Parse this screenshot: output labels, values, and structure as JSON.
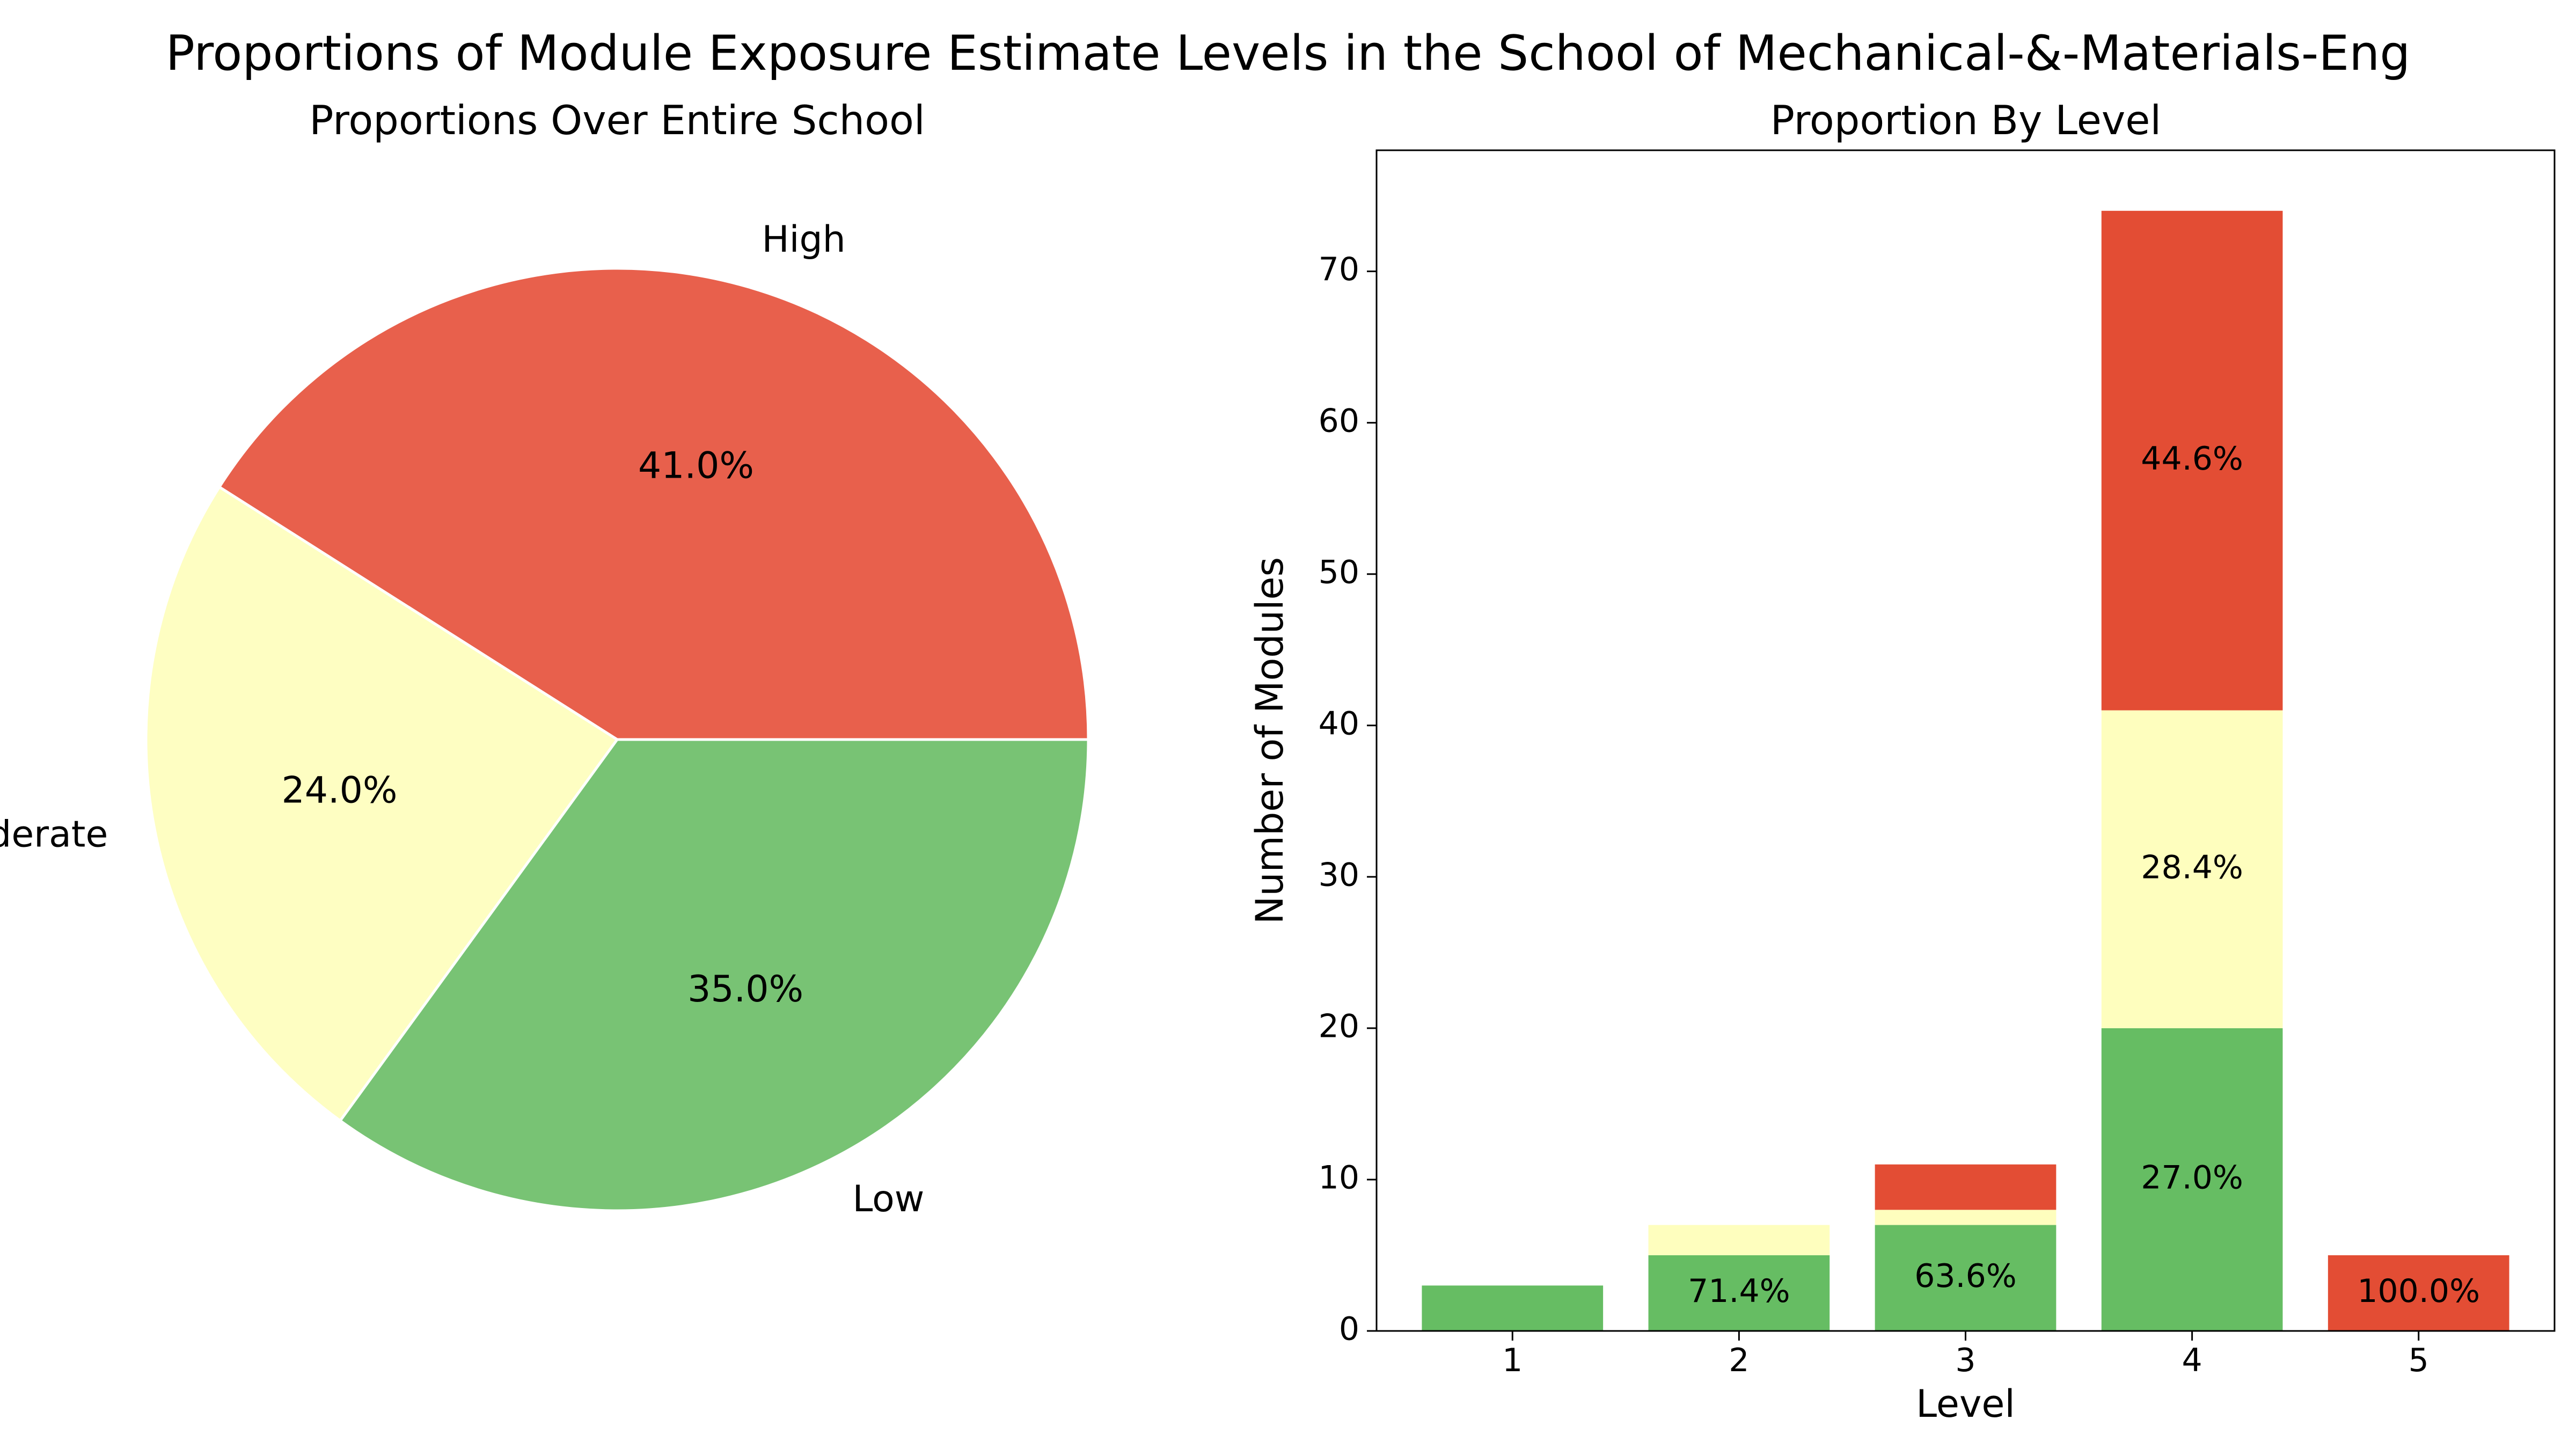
{
  "figure": {
    "title": "Proportions of Module Exposure Estimate Levels in the School of Mechanical-&-Materials-Eng"
  },
  "chart_data": [
    {
      "type": "pie",
      "title": "Proportions Over Entire School",
      "slices": [
        {
          "label": "High",
          "value": 41.0,
          "pct_label": "41.0%",
          "color": "#e8604c"
        },
        {
          "label": "Moderate",
          "value": 24.0,
          "pct_label": "24.0%",
          "color": "#fefec2"
        },
        {
          "label": "Low",
          "value": 35.0,
          "pct_label": "35.0%",
          "color": "#78c374"
        }
      ]
    },
    {
      "type": "bar",
      "stacked": true,
      "title": "Proportion By Level",
      "xlabel": "Level",
      "ylabel": "Number of Modules",
      "categories": [
        "1",
        "2",
        "3",
        "4",
        "5"
      ],
      "ylim": [
        0,
        78
      ],
      "yticks": [
        0,
        10,
        20,
        30,
        40,
        50,
        60,
        70
      ],
      "series": [
        {
          "key": "low",
          "color": "#66bd63",
          "values": [
            3,
            5,
            7,
            20,
            0
          ]
        },
        {
          "key": "moderate",
          "color": "#fefebe",
          "values": [
            0,
            2,
            1,
            21,
            0
          ]
        },
        {
          "key": "high",
          "color": "#e34d34",
          "values": [
            0,
            0,
            3,
            33,
            5
          ]
        }
      ],
      "annotations": [
        {
          "category": "2",
          "series": "low",
          "text": "71.4%"
        },
        {
          "category": "3",
          "series": "low",
          "text": "63.6%"
        },
        {
          "category": "4",
          "series": "low",
          "text": "27.0%"
        },
        {
          "category": "4",
          "series": "moderate",
          "text": "28.4%"
        },
        {
          "category": "4",
          "series": "high",
          "text": "44.6%"
        },
        {
          "category": "5",
          "series": "high",
          "text": "100.0%"
        }
      ]
    }
  ]
}
